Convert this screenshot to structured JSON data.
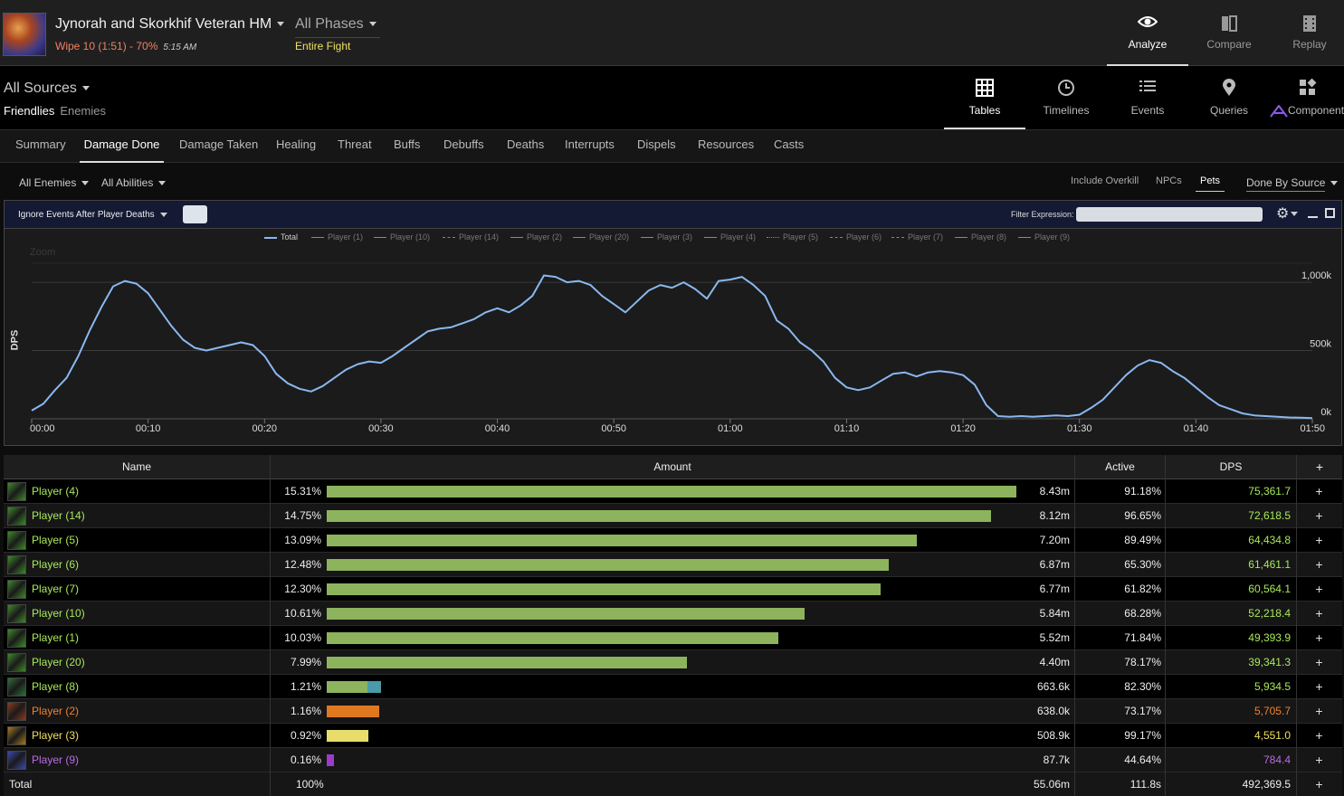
{
  "header": {
    "fight_title": "Jynorah and Skorkhif Veteran HM",
    "wipe": "Wipe 10 (1:51) - 70%",
    "time": "5:15 AM",
    "phases": "All Phases",
    "phase_sub": "Entire Fight",
    "nav": [
      {
        "label": "Analyze",
        "icon": "eye-icon"
      },
      {
        "label": "Compare",
        "icon": "compare-icon"
      },
      {
        "label": "Replay",
        "icon": "replay-icon"
      }
    ]
  },
  "sources": {
    "label": "All Sources",
    "friendlies": "Friendlies",
    "enemies": "Enemies"
  },
  "views": [
    {
      "label": "Tables",
      "icon": "grid-icon"
    },
    {
      "label": "Timelines",
      "icon": "clock-icon"
    },
    {
      "label": "Events",
      "icon": "list-icon"
    },
    {
      "label": "Queries",
      "icon": "pin-icon"
    },
    {
      "label": "Component",
      "icon": "component-icon"
    }
  ],
  "tabs": [
    "Summary",
    "Damage Done",
    "Damage Taken",
    "Healing",
    "Threat",
    "Buffs",
    "Debuffs",
    "Deaths",
    "Interrupts",
    "Dispels",
    "Resources",
    "Casts"
  ],
  "filters": {
    "enemies": "All Enemies",
    "abilities": "All Abilities",
    "include_overkill": "Include Overkill",
    "npcs": "NPCs",
    "pets": "Pets",
    "done_by": "Done By Source"
  },
  "chart_header": {
    "ignore": "Ignore Events After Player Deaths",
    "filter_label": "Filter Expression:"
  },
  "chart_data": {
    "type": "line",
    "ylabel": "DPS",
    "zoom_hint": "Zoom",
    "xlim": [
      0,
      110
    ],
    "ylim": [
      0,
      1100000
    ],
    "yticks": [
      {
        "v": 0,
        "label": "0k"
      },
      {
        "v": 500000,
        "label": "500k"
      },
      {
        "v": 1000000,
        "label": "1,000k"
      }
    ],
    "xticks": [
      "00:00",
      "00:10",
      "00:20",
      "00:30",
      "00:40",
      "00:50",
      "01:00",
      "01:10",
      "01:20",
      "01:30",
      "01:40",
      "01:50"
    ],
    "legend": [
      {
        "name": "Total",
        "dash": "solid"
      },
      {
        "name": "Player (1)",
        "dash": "solid"
      },
      {
        "name": "Player (10)",
        "dash": "solid"
      },
      {
        "name": "Player (14)",
        "dash": "dashed"
      },
      {
        "name": "Player (2)",
        "dash": "solid"
      },
      {
        "name": "Player (20)",
        "dash": "solid"
      },
      {
        "name": "Player (3)",
        "dash": "solid"
      },
      {
        "name": "Player (4)",
        "dash": "solid"
      },
      {
        "name": "Player (5)",
        "dash": "dotted"
      },
      {
        "name": "Player (6)",
        "dash": "dashdot"
      },
      {
        "name": "Player (7)",
        "dash": "dashed"
      },
      {
        "name": "Player (8)",
        "dash": "solid"
      },
      {
        "name": "Player (9)",
        "dash": "solid"
      }
    ],
    "series": [
      {
        "name": "Total",
        "color": "#8ab8f0",
        "points": [
          [
            0,
            60000
          ],
          [
            1,
            110000
          ],
          [
            2,
            210000
          ],
          [
            3,
            300000
          ],
          [
            4,
            460000
          ],
          [
            5,
            650000
          ],
          [
            6,
            820000
          ],
          [
            7,
            970000
          ],
          [
            8,
            1010000
          ],
          [
            9,
            990000
          ],
          [
            10,
            920000
          ],
          [
            11,
            800000
          ],
          [
            12,
            680000
          ],
          [
            13,
            580000
          ],
          [
            14,
            520000
          ],
          [
            15,
            500000
          ],
          [
            16,
            520000
          ],
          [
            17,
            540000
          ],
          [
            18,
            560000
          ],
          [
            19,
            540000
          ],
          [
            20,
            460000
          ],
          [
            21,
            330000
          ],
          [
            22,
            260000
          ],
          [
            23,
            220000
          ],
          [
            24,
            200000
          ],
          [
            25,
            240000
          ],
          [
            26,
            300000
          ],
          [
            27,
            360000
          ],
          [
            28,
            400000
          ],
          [
            29,
            420000
          ],
          [
            30,
            410000
          ],
          [
            31,
            460000
          ],
          [
            32,
            520000
          ],
          [
            33,
            580000
          ],
          [
            34,
            640000
          ],
          [
            35,
            660000
          ],
          [
            36,
            670000
          ],
          [
            37,
            700000
          ],
          [
            38,
            730000
          ],
          [
            39,
            780000
          ],
          [
            40,
            810000
          ],
          [
            41,
            780000
          ],
          [
            42,
            830000
          ],
          [
            43,
            900000
          ],
          [
            44,
            1050000
          ],
          [
            45,
            1040000
          ],
          [
            46,
            1000000
          ],
          [
            47,
            1010000
          ],
          [
            48,
            980000
          ],
          [
            49,
            900000
          ],
          [
            50,
            840000
          ],
          [
            51,
            780000
          ],
          [
            52,
            860000
          ],
          [
            53,
            940000
          ],
          [
            54,
            980000
          ],
          [
            55,
            960000
          ],
          [
            56,
            1000000
          ],
          [
            57,
            950000
          ],
          [
            58,
            880000
          ],
          [
            59,
            1010000
          ],
          [
            60,
            1020000
          ],
          [
            61,
            1040000
          ],
          [
            62,
            980000
          ],
          [
            63,
            900000
          ],
          [
            64,
            720000
          ],
          [
            65,
            660000
          ],
          [
            66,
            560000
          ],
          [
            67,
            500000
          ],
          [
            68,
            420000
          ],
          [
            69,
            300000
          ],
          [
            70,
            230000
          ],
          [
            71,
            210000
          ],
          [
            72,
            230000
          ],
          [
            73,
            280000
          ],
          [
            74,
            330000
          ],
          [
            75,
            340000
          ],
          [
            76,
            310000
          ],
          [
            77,
            340000
          ],
          [
            78,
            350000
          ],
          [
            79,
            340000
          ],
          [
            80,
            320000
          ],
          [
            81,
            250000
          ],
          [
            82,
            100000
          ],
          [
            83,
            20000
          ],
          [
            84,
            15000
          ],
          [
            85,
            20000
          ],
          [
            86,
            15000
          ],
          [
            87,
            20000
          ],
          [
            88,
            25000
          ],
          [
            89,
            20000
          ],
          [
            90,
            30000
          ],
          [
            91,
            80000
          ],
          [
            92,
            140000
          ],
          [
            93,
            230000
          ],
          [
            94,
            320000
          ],
          [
            95,
            390000
          ],
          [
            96,
            430000
          ],
          [
            97,
            410000
          ],
          [
            98,
            350000
          ],
          [
            99,
            300000
          ],
          [
            100,
            230000
          ],
          [
            101,
            160000
          ],
          [
            102,
            100000
          ],
          [
            103,
            70000
          ],
          [
            104,
            40000
          ],
          [
            105,
            25000
          ],
          [
            106,
            20000
          ],
          [
            107,
            15000
          ],
          [
            108,
            10000
          ],
          [
            109,
            8000
          ],
          [
            110,
            5000
          ]
        ]
      }
    ]
  },
  "table": {
    "headers": {
      "name": "Name",
      "amount": "Amount",
      "active": "Active",
      "dps": "DPS",
      "plus": "+"
    },
    "rows": [
      {
        "name": "Player (4)",
        "pct": "15.31%",
        "frac": 15.31,
        "amount": "8.43m",
        "active": "91.18%",
        "dps": "75,361.7",
        "color": "#a8e85a",
        "bar": "#8db35d",
        "icon": "#3f8a2a"
      },
      {
        "name": "Player (14)",
        "pct": "14.75%",
        "frac": 14.75,
        "amount": "8.12m",
        "active": "96.65%",
        "dps": "72,618.5",
        "color": "#a8e85a",
        "bar": "#8db35d",
        "icon": "#3f8a2a"
      },
      {
        "name": "Player (5)",
        "pct": "13.09%",
        "frac": 13.09,
        "amount": "7.20m",
        "active": "89.49%",
        "dps": "64,434.8",
        "color": "#a8e85a",
        "bar": "#8db35d",
        "icon": "#3f8a2a"
      },
      {
        "name": "Player (6)",
        "pct": "12.48%",
        "frac": 12.48,
        "amount": "6.87m",
        "active": "65.30%",
        "dps": "61,461.1",
        "color": "#a8e85a",
        "bar": "#8db35d",
        "icon": "#3f8a2a"
      },
      {
        "name": "Player (7)",
        "pct": "12.30%",
        "frac": 12.3,
        "amount": "6.77m",
        "active": "61.82%",
        "dps": "60,564.1",
        "color": "#a8e85a",
        "bar": "#8db35d",
        "icon": "#3f8a2a"
      },
      {
        "name": "Player (10)",
        "pct": "10.61%",
        "frac": 10.61,
        "amount": "5.84m",
        "active": "68.28%",
        "dps": "52,218.4",
        "color": "#a8e85a",
        "bar": "#8db35d",
        "icon": "#3f8a2a"
      },
      {
        "name": "Player (1)",
        "pct": "10.03%",
        "frac": 10.03,
        "amount": "5.52m",
        "active": "71.84%",
        "dps": "49,393.9",
        "color": "#a8e85a",
        "bar": "#8db35d",
        "icon": "#3f8a2a"
      },
      {
        "name": "Player (20)",
        "pct": "7.99%",
        "frac": 7.99,
        "amount": "4.40m",
        "active": "78.17%",
        "dps": "39,341.3",
        "color": "#a8e85a",
        "bar": "#8db35d",
        "icon": "#3f8a2a"
      },
      {
        "name": "Player (8)",
        "pct": "1.21%",
        "frac": 1.21,
        "amount": "663.6k",
        "active": "82.30%",
        "dps": "5,934.5",
        "color": "#a8e85a",
        "bar": "#8db35d",
        "bar2": "#4a9aa8",
        "icon": "#2e6e3a"
      },
      {
        "name": "Player (2)",
        "pct": "1.16%",
        "frac": 1.16,
        "amount": "638.0k",
        "active": "73.17%",
        "dps": "5,705.7",
        "color": "#f08030",
        "bar": "#e07820",
        "icon": "#8a3a20"
      },
      {
        "name": "Player (3)",
        "pct": "0.92%",
        "frac": 0.92,
        "amount": "508.9k",
        "active": "99.17%",
        "dps": "4,551.0",
        "color": "#f0e060",
        "bar": "#e8dc6a",
        "icon": "#a87a20"
      },
      {
        "name": "Player (9)",
        "pct": "0.16%",
        "frac": 0.16,
        "amount": "87.7k",
        "active": "44.64%",
        "dps": "784.4",
        "color": "#b86ee0",
        "bar": "#9a3cc8",
        "icon": "#3a4aa8"
      }
    ],
    "total": {
      "name": "Total",
      "pct": "100%",
      "amount": "55.06m",
      "active": "111.8s",
      "dps": "492,369.5"
    }
  }
}
